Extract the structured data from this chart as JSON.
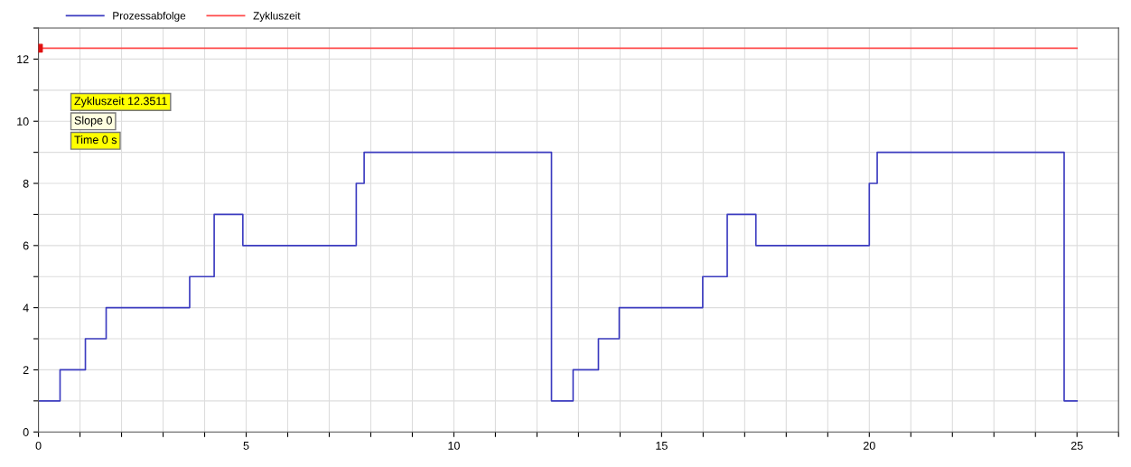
{
  "chart_data": {
    "type": "step",
    "series": [
      {
        "name": "Prozessabfolge",
        "color": "#3c3cc0",
        "x": [
          0,
          0.52,
          1.13,
          1.63,
          3.64,
          4.23,
          4.92,
          7.65,
          7.84,
          12.35,
          12.87,
          13.48,
          13.98,
          15.99,
          16.58,
          17.27,
          20.0,
          20.19,
          24.69,
          25.0
        ],
        "values": [
          1,
          2,
          3,
          4,
          5,
          7,
          6,
          8,
          9,
          1,
          2,
          3,
          4,
          5,
          7,
          6,
          8,
          9,
          1,
          1
        ]
      },
      {
        "name": "Zykluszeit",
        "color": "#ff4a4a",
        "type": "line",
        "x": [
          0,
          25
        ],
        "values": [
          12.3511,
          12.3511
        ]
      },
      {
        "color": "#e01010",
        "type": "scatter",
        "marker": "square",
        "x": [
          0
        ],
        "values": [
          12.3511
        ]
      }
    ],
    "xlim": [
      0,
      26
    ],
    "ylim": [
      0,
      13
    ],
    "xticks": [
      0,
      {
        "value": 1,
        "label": null
      },
      {
        "value": 2,
        "label": null
      },
      {
        "value": 3,
        "label": null
      },
      {
        "value": 4,
        "label": null
      },
      5,
      {
        "value": 6,
        "label": null
      },
      {
        "value": 7,
        "label": null
      },
      {
        "value": 8,
        "label": null
      },
      {
        "value": 9,
        "label": null
      },
      10,
      {
        "value": 11,
        "label": null
      },
      {
        "value": 12,
        "label": null
      },
      {
        "value": 13,
        "label": null
      },
      {
        "value": 14,
        "label": null
      },
      15,
      {
        "value": 16,
        "label": null
      },
      {
        "value": 17,
        "label": null
      },
      {
        "value": 18,
        "label": null
      },
      {
        "value": 19,
        "label": null
      },
      20,
      {
        "value": 21,
        "label": null
      },
      {
        "value": 22,
        "label": null
      },
      {
        "value": 23,
        "label": null
      },
      {
        "value": 24,
        "label": null
      },
      25,
      {
        "value": 26,
        "label": null
      }
    ],
    "yticks": [
      0,
      {
        "value": 1,
        "label": null
      },
      2,
      {
        "value": 3,
        "label": null
      },
      4,
      {
        "value": 5,
        "label": null
      },
      6,
      {
        "value": 7,
        "label": null
      },
      8,
      {
        "value": 9,
        "label": null
      },
      10,
      {
        "value": 11,
        "label": null
      },
      12,
      {
        "value": 13,
        "label": null
      }
    ],
    "annotations": [
      "Zykluszeit 12.3511",
      "Slope 0",
      "Time 0 s"
    ],
    "grid": true,
    "legend": "top left"
  }
}
